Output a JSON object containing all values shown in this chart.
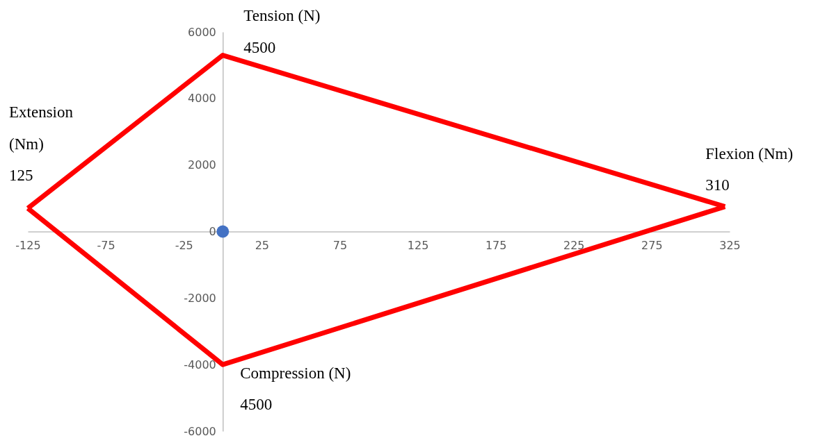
{
  "chart_data": {
    "type": "line",
    "xlim": [
      -125,
      325
    ],
    "xticks": [
      -125,
      -75,
      -25,
      25,
      75,
      125,
      175,
      225,
      275,
      325
    ],
    "ylim": [
      -6000,
      6000
    ],
    "yticks": [
      -6000,
      -4000,
      -2000,
      0,
      2000,
      4000,
      6000
    ],
    "grid": false,
    "line_style": "solid",
    "series": [
      {
        "color": "#ff0000",
        "x": [
          -125,
          0,
          322
        ],
        "values": [
          700,
          5300,
          750
        ]
      },
      {
        "color": "#ff0000",
        "x": [
          -125,
          0,
          322
        ],
        "values": [
          700,
          -4000,
          750
        ]
      },
      {
        "type": "scatter",
        "color": "#4472c4",
        "marker": "circle",
        "x": [
          0
        ],
        "values": [
          0
        ]
      }
    ],
    "annotations": [
      {
        "text": "Tension (N)",
        "x": 0,
        "y": 5300
      },
      {
        "text": "4500",
        "x": 0,
        "y": 5300
      },
      "Extension (Nm)",
      {
        "text": "125",
        "x": -125,
        "y": 700
      },
      {
        "text": "Flexion (Nm)",
        "x": 322,
        "y": 750
      },
      {
        "text": "310",
        "x": 322,
        "y": 750
      },
      {
        "text": "Compression (N)",
        "x": 0,
        "y": -4000
      },
      {
        "text": "4500",
        "x": 0,
        "y": -4000
      }
    ]
  }
}
